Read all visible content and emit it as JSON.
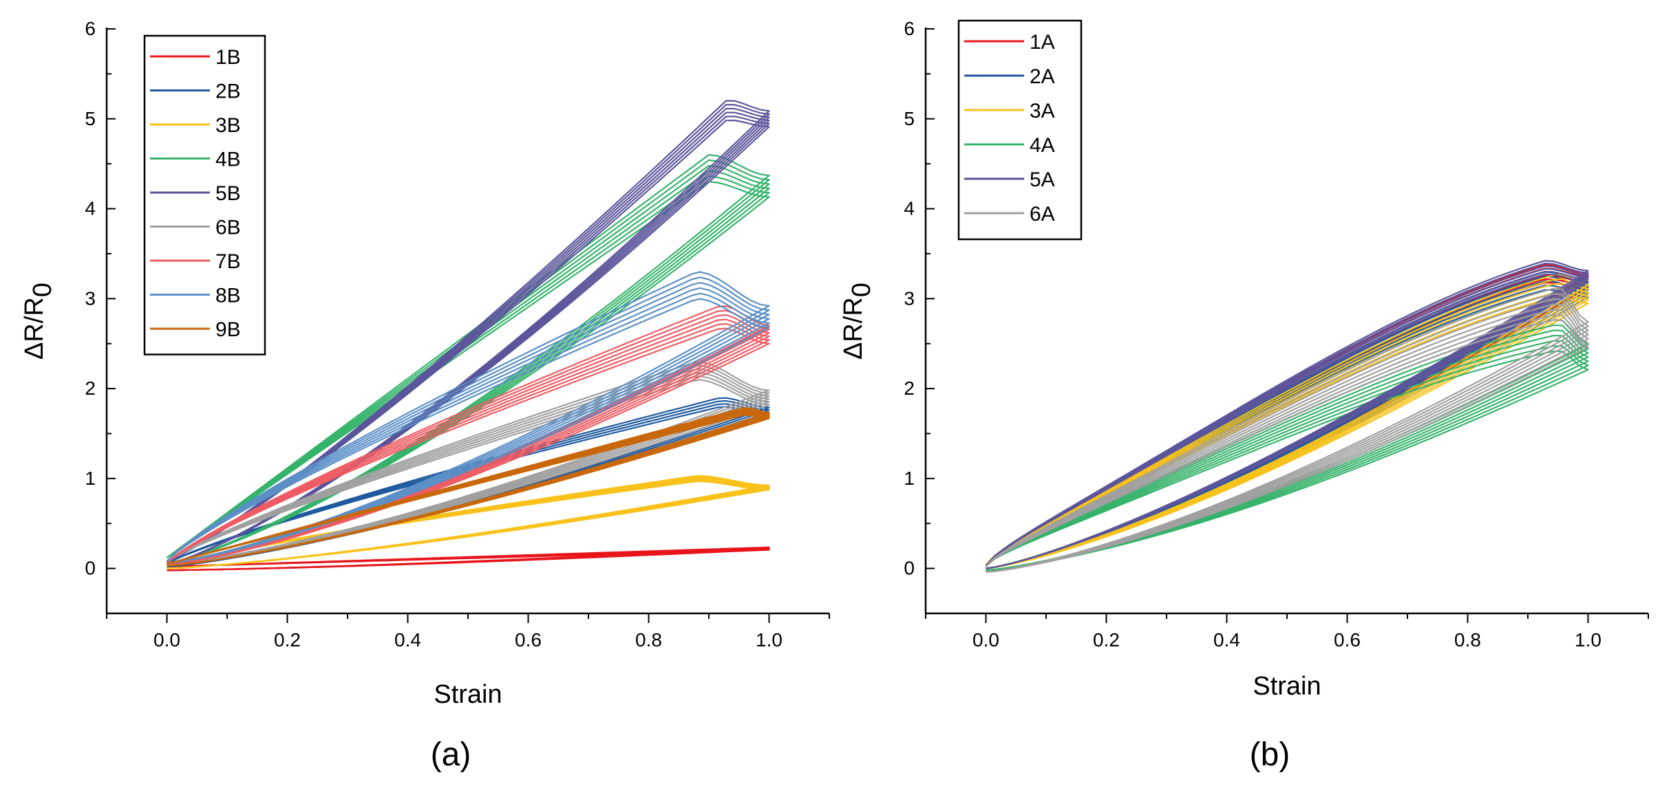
{
  "chart_data": [
    {
      "type": "line",
      "panel_label": "(a)",
      "xlabel": "Strain",
      "ylabel_main": "ΔR/R",
      "ylabel_sub": "0",
      "xlim": [
        -0.1,
        1.1
      ],
      "ylim": [
        -0.5,
        6
      ],
      "xticks": [
        0.0,
        0.2,
        0.4,
        0.6,
        0.8,
        1.0
      ],
      "xtick_labels": [
        "0.0",
        "0.2",
        "0.4",
        "0.6",
        "0.8",
        "1.0"
      ],
      "yticks": [
        0,
        1,
        2,
        3,
        4,
        5,
        6
      ],
      "ytick_labels": [
        "0",
        "1",
        "2",
        "3",
        "4",
        "5",
        "6"
      ],
      "grid": false,
      "legend_position": "top-left",
      "series": [
        {
          "name": "1B",
          "color": "#e8151b",
          "peak": 0.22,
          "peak_strain": 1.0,
          "end": 0.22,
          "load_start": 0.02,
          "unload_end": -0.02,
          "shape": "linear",
          "spread": 0.03,
          "cycles": 6
        },
        {
          "name": "2B",
          "color": "#1f5a9f",
          "peak": 1.85,
          "peak_strain": 0.92,
          "end": 1.75,
          "load_start": 0.05,
          "unload_end": 0.02,
          "shape": "convex",
          "spread": 0.1,
          "cycles": 4
        },
        {
          "name": "3B",
          "color": "#f8c21b",
          "peak": 1.0,
          "peak_strain": 0.88,
          "end": 0.9,
          "load_start": 0.03,
          "unload_end": 0.0,
          "shape": "convex",
          "spread": 0.06,
          "cycles": 5
        },
        {
          "name": "4B",
          "color": "#35b36a",
          "peak": 4.45,
          "peak_strain": 0.9,
          "end": 4.25,
          "load_start": 0.12,
          "unload_end": 0.06,
          "shape": "linear",
          "spread": 0.3,
          "cycles": 6
        },
        {
          "name": "5B",
          "color": "#5b559b",
          "peak": 5.1,
          "peak_strain": 0.93,
          "end": 5.0,
          "load_start": 0.08,
          "unload_end": 0.05,
          "shape": "concave",
          "spread": 0.22,
          "cycles": 6
        },
        {
          "name": "6B",
          "color": "#a0a0a0",
          "peak": 2.2,
          "peak_strain": 0.88,
          "end": 1.9,
          "load_start": 0.07,
          "unload_end": 0.05,
          "shape": "convex",
          "spread": 0.2,
          "cycles": 6
        },
        {
          "name": "7B",
          "color": "#ef5b63",
          "peak": 2.8,
          "peak_strain": 0.92,
          "end": 2.6,
          "load_start": 0.06,
          "unload_end": 0.04,
          "shape": "convex",
          "spread": 0.25,
          "cycles": 6
        },
        {
          "name": "8B",
          "color": "#5a8fc7",
          "peak": 3.15,
          "peak_strain": 0.88,
          "end": 2.8,
          "load_start": 0.08,
          "unload_end": 0.06,
          "shape": "convex",
          "spread": 0.3,
          "cycles": 6
        },
        {
          "name": "9B",
          "color": "#c8680b",
          "peak": 1.75,
          "peak_strain": 0.96,
          "end": 1.7,
          "load_start": 0.05,
          "unload_end": 0.03,
          "shape": "linear",
          "spread": 0.08,
          "cycles": 6
        }
      ]
    },
    {
      "type": "line",
      "panel_label": "(b)",
      "xlabel": "Strain",
      "ylabel_main": "ΔR/R",
      "ylabel_sub": "0",
      "xlim": [
        -0.1,
        1.1
      ],
      "ylim": [
        -0.5,
        6
      ],
      "xticks": [
        0.0,
        0.2,
        0.4,
        0.6,
        0.8,
        1.0
      ],
      "xtick_labels": [
        "0.0",
        "0.2",
        "0.4",
        "0.6",
        "0.8",
        "1.0"
      ],
      "yticks": [
        0,
        1,
        2,
        3,
        4,
        5,
        6
      ],
      "ytick_labels": [
        "0",
        "1",
        "2",
        "3",
        "4",
        "5",
        "6"
      ],
      "grid": false,
      "legend_position": "top-left",
      "series": [
        {
          "name": "1A",
          "color": "#e8151b",
          "peak": 3.28,
          "peak_strain": 0.93,
          "end": 3.2,
          "load_start": 0.03,
          "unload_end": 0.0,
          "shape": "s-curve",
          "spread": 0.2,
          "cycles": 6
        },
        {
          "name": "2A",
          "color": "#1f5a9f",
          "peak": 3.2,
          "peak_strain": 0.93,
          "end": 3.1,
          "load_start": 0.03,
          "unload_end": 0.0,
          "shape": "s-curve",
          "spread": 0.2,
          "cycles": 5
        },
        {
          "name": "3A",
          "color": "#f8c21b",
          "peak": 3.15,
          "peak_strain": 0.95,
          "end": 3.05,
          "load_start": 0.04,
          "unload_end": 0.0,
          "shape": "s-curve",
          "spread": 0.25,
          "cycles": 6
        },
        {
          "name": "4A",
          "color": "#35b36a",
          "peak": 2.6,
          "peak_strain": 0.95,
          "end": 2.35,
          "load_start": 0.03,
          "unload_end": -0.02,
          "shape": "s-curve",
          "spread": 0.35,
          "cycles": 7
        },
        {
          "name": "5A",
          "color": "#5b559b",
          "peak": 3.35,
          "peak_strain": 0.93,
          "end": 3.25,
          "load_start": 0.03,
          "unload_end": 0.0,
          "shape": "s-curve",
          "spread": 0.15,
          "cycles": 6
        },
        {
          "name": "6A",
          "color": "#a0a0a0",
          "peak": 2.95,
          "peak_strain": 0.95,
          "end": 2.6,
          "load_start": 0.02,
          "unload_end": -0.04,
          "shape": "s-curve",
          "spread": 0.35,
          "cycles": 7
        }
      ]
    }
  ]
}
